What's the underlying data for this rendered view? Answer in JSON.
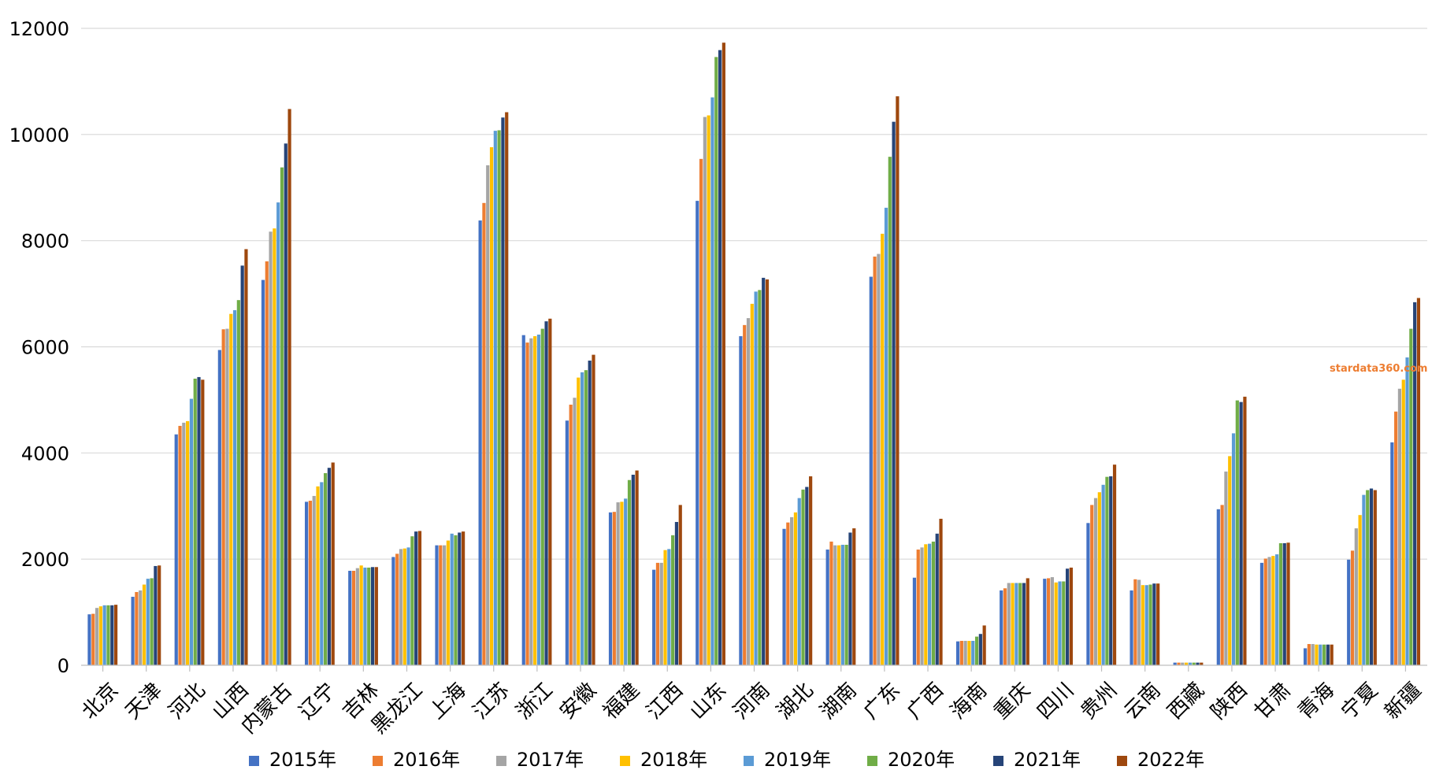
{
  "chart_data": {
    "type": "bar",
    "title": "",
    "xlabel": "",
    "ylabel": "",
    "ylim": [
      0,
      12000
    ],
    "yticks": [
      0,
      2000,
      4000,
      6000,
      8000,
      10000,
      12000
    ],
    "grid": "horizontal",
    "legend_position": "bottom",
    "categories": [
      "北京",
      "天津",
      "河北",
      "山西",
      "内蒙古",
      "辽宁",
      "吉林",
      "黑龙江",
      "上海",
      "江苏",
      "浙江",
      "安徽",
      "福建",
      "江西",
      "山东",
      "河南",
      "湖北",
      "湖南",
      "广东",
      "广西",
      "海南",
      "重庆",
      "四川",
      "贵州",
      "云南",
      "西藏",
      "陕西",
      "甘肃",
      "青海",
      "宁夏",
      "新疆"
    ],
    "series": [
      {
        "name": "2015年",
        "color": "#4472C4",
        "values": [
          960,
          1290,
          4350,
          5940,
          7260,
          3080,
          1780,
          2040,
          2260,
          8380,
          6220,
          4610,
          2880,
          1800,
          8750,
          6200,
          2570,
          2180,
          7320,
          1650,
          450,
          1410,
          1630,
          2680,
          1410,
          50,
          2940,
          1930,
          320,
          1990,
          4200
        ]
      },
      {
        "name": "2016年",
        "color": "#ED7D31",
        "values": [
          970,
          1380,
          4510,
          6330,
          7610,
          3100,
          1780,
          2100,
          2260,
          8710,
          6080,
          4910,
          2890,
          1930,
          9540,
          6410,
          2690,
          2330,
          7700,
          2180,
          460,
          1450,
          1640,
          3020,
          1620,
          50,
          3020,
          2010,
          400,
          2160,
          4780
        ]
      },
      {
        "name": "2017年",
        "color": "#A5A5A5",
        "values": [
          1080,
          1410,
          4570,
          6340,
          8170,
          3190,
          1830,
          2190,
          2260,
          9420,
          6160,
          5040,
          3070,
          1930,
          10330,
          6540,
          2790,
          2260,
          7750,
          2220,
          460,
          1550,
          1660,
          3150,
          1610,
          50,
          3650,
          2040,
          400,
          2580,
          5210
        ]
      },
      {
        "name": "2018年",
        "color": "#FFC000",
        "values": [
          1110,
          1520,
          4600,
          6620,
          8230,
          3370,
          1880,
          2200,
          2350,
          9760,
          6200,
          5420,
          3080,
          2170,
          10360,
          6810,
          2880,
          2260,
          8130,
          2280,
          460,
          1550,
          1560,
          3260,
          1510,
          50,
          3940,
          2060,
          390,
          2830,
          5380
        ]
      },
      {
        "name": "2019年",
        "color": "#5B9BD5",
        "values": [
          1130,
          1630,
          5020,
          6690,
          8720,
          3450,
          1840,
          2220,
          2480,
          10070,
          6230,
          5520,
          3140,
          2190,
          10700,
          7040,
          3150,
          2270,
          8620,
          2290,
          460,
          1550,
          1580,
          3400,
          1510,
          50,
          4370,
          2090,
          390,
          3210,
          5800
        ]
      },
      {
        "name": "2020年",
        "color": "#70AD47",
        "values": [
          1130,
          1640,
          5400,
          6880,
          9380,
          3620,
          1840,
          2430,
          2450,
          10080,
          6340,
          5560,
          3490,
          2450,
          11460,
          7070,
          3310,
          2270,
          9580,
          2330,
          540,
          1550,
          1580,
          3550,
          1520,
          50,
          4990,
          2300,
          390,
          3300,
          6340
        ]
      },
      {
        "name": "2021年",
        "color": "#264478",
        "values": [
          1130,
          1870,
          5430,
          7530,
          9830,
          3720,
          1850,
          2520,
          2500,
          10320,
          6480,
          5740,
          3590,
          2700,
          11590,
          7300,
          3360,
          2500,
          10240,
          2480,
          590,
          1550,
          1820,
          3560,
          1540,
          50,
          4960,
          2300,
          390,
          3330,
          6840
        ]
      },
      {
        "name": "2022年",
        "color": "#9E480E",
        "values": [
          1140,
          1880,
          5380,
          7840,
          10480,
          3820,
          1850,
          2530,
          2520,
          10420,
          6530,
          5850,
          3670,
          3020,
          11730,
          7270,
          3560,
          2580,
          10720,
          2760,
          750,
          1640,
          1840,
          3780,
          1540,
          50,
          5060,
          2310,
          390,
          3300,
          6920
        ]
      }
    ]
  },
  "watermark": {
    "text": "stardata360.com",
    "color": "#ED7D31"
  }
}
